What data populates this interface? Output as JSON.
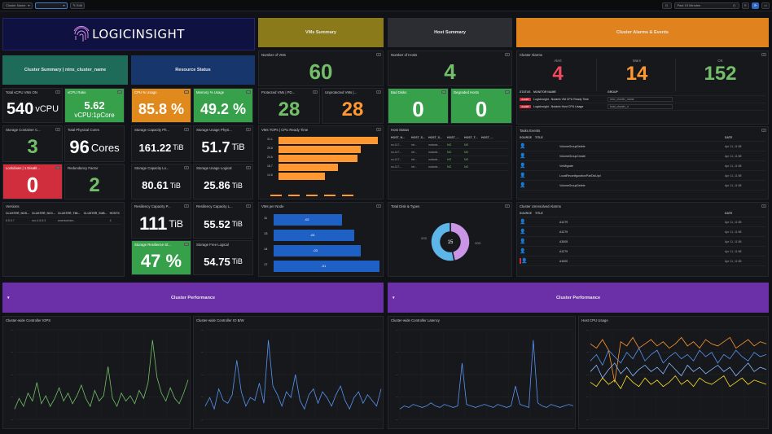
{
  "topbar": {
    "dropdown_a": "Cluster Name",
    "dropdown_c": "Edit",
    "time_range": "Past 15 Minutes"
  },
  "logo": {
    "text": "LOGICINSIGHT"
  },
  "sections": {
    "vms_summary": "VMs Summary",
    "host_summary": "Host Summary",
    "alarms_events": "Cluster Alarms & Events",
    "cluster_summary": "Cluster Summary | ntnx_cluster_name",
    "resource_status": "Resource Status",
    "perf_left": "Cluster Performance",
    "perf_right": "Cluster Performance"
  },
  "stats": {
    "total_vcpu": {
      "title": "Total vCPU VMs ON",
      "value": "540",
      "unit": "vCPU"
    },
    "vcpu_ratio": {
      "title": "vCPU Ratio",
      "value": "5.62",
      "sub": "vCPU:1pCore"
    },
    "cpu_usage": {
      "title": "CPU % Usage",
      "value": "85.8 %"
    },
    "memory_usage": {
      "title": "Memory % Usage",
      "value": "49.2 %"
    },
    "storage_container": {
      "title": "Storage Container C...",
      "value": "3"
    },
    "physical_cores": {
      "title": "Total Physical Cores",
      "value": "96",
      "unit": "Cores"
    },
    "storage_cap_ph": {
      "title": "Storage Capacity Ph...",
      "value": "161.22",
      "unit": "TiB"
    },
    "storage_usage_ph": {
      "title": "Storage Usage Physi...",
      "value": "51.7",
      "unit": "TiB"
    },
    "lockdown": {
      "title": "Lockdown | 1 Disabl...",
      "value": "0"
    },
    "redundancy": {
      "title": "Redundancy Factor",
      "value": "2"
    },
    "storage_cap_lo": {
      "title": "Storage Capacity Lo...",
      "value": "80.61",
      "unit": "TiB"
    },
    "storage_usage_lo": {
      "title": "Storage Usage Logical",
      "value": "25.86",
      "unit": "TiB"
    },
    "resiliency_cap_p": {
      "title": "Resiliency Capacity P...",
      "value": "111",
      "unit": "TiB"
    },
    "resiliency_cap_l": {
      "title": "Resiliency Capacity L...",
      "value": "55.52",
      "unit": "TiB"
    },
    "storage_resilience": {
      "title": "Storage Resilience St...",
      "value": "47 %"
    },
    "storage_free": {
      "title": "Storage Free Logical",
      "value": "54.75",
      "unit": "TiB"
    },
    "num_vms": {
      "title": "Number of VMs",
      "value": "60"
    },
    "protected_vms": {
      "title": "Protected VMs | PD...",
      "value": "28"
    },
    "unprotected_vms": {
      "title": "Unprotected VMs |...",
      "value": "28"
    },
    "num_hosts": {
      "title": "Number of Hosts",
      "value": "4"
    },
    "bad_disks": {
      "title": "Bad Disks",
      "value": "0"
    },
    "degraded_hosts": {
      "title": "Degraded Hosts",
      "value": "0"
    }
  },
  "versions": {
    "title": "Versions",
    "headers": [
      "CLUSTER_NOS...",
      "CLUSTER_NCC...",
      "CLUSTER_TIM...",
      "CLUSTER_SUB...",
      "HOSTS"
    ],
    "values": [
      "6.5.5.7",
      "ncc-4.6.6.3",
      "america/ram...",
      "",
      "4"
    ]
  },
  "vms_tops": {
    "title": "VMs TOPs | CPU Ready Time",
    "labels": [
      "31.1",
      "25.8",
      "24.6",
      "18.7",
      "14.6"
    ],
    "values": [
      31.1,
      25.8,
      24.6,
      18.7,
      14.6
    ]
  },
  "vms_per_node": {
    "title": "VMs per Node",
    "labels": [
      "11",
      "13",
      "14",
      "17"
    ],
    "ends": [
      "-02",
      "-04",
      "-03",
      "-01"
    ],
    "values": [
      11,
      13,
      14,
      17
    ]
  },
  "host_status": {
    "title": "Host Status",
    "headers": [
      "HOST_N...",
      "HOST_S...",
      "HOST_S...",
      "HOST_...",
      "HOST_T...",
      "HOST_..."
    ],
    "rows": [
      [
        "nx-117...",
        "ntr...",
        "nutanix...",
        "NO",
        "NO",
        ""
      ],
      [
        "nx-117...",
        "ntr...",
        "nutanix...",
        "NO",
        "NO",
        ""
      ],
      [
        "nx-117...",
        "ntr...",
        "nutanix...",
        "NO",
        "NO",
        ""
      ],
      [
        "nx-117...",
        "ntr...",
        "nutanix...",
        "NO",
        "NO",
        ""
      ]
    ]
  },
  "disk_types": {
    "title": "Total Disk & Types",
    "total": "15",
    "left_label": "SSD",
    "right_label": "HDD",
    "slices": [
      {
        "name": "SSD",
        "value": 7,
        "color": "#ca95e5"
      },
      {
        "name": "HDD",
        "value": 8,
        "color": "#5eb6e8"
      }
    ]
  },
  "alarms": {
    "title": "Cluster Alarms",
    "alert": {
      "label": "Alert",
      "value": "4"
    },
    "warn": {
      "label": "Warn",
      "value": "14"
    },
    "ok": {
      "label": "OK",
      "value": "152"
    },
    "headers": [
      "STATUS",
      "MONITOR NAME",
      "GROUP"
    ],
    "rows": [
      {
        "status": "ALERT",
        "monitor": "LogicInsight - Nutanix VM CPU Ready Time",
        "group": "ntnx_cluster_name"
      },
      {
        "status": "ALERT",
        "monitor": "LogicInsight - Nutanix Host CPU Usage",
        "group": "host_cluster_n"
      }
    ]
  },
  "task_events": {
    "title": "Tasks Events",
    "headers": [
      "SOURCE",
      "TITLE",
      "DATE"
    ],
    "rows": [
      {
        "title": "VolumeGroupDelete",
        "date": "Apr 11, 11:58"
      },
      {
        "title": "VolumeGroupCreate",
        "date": "Apr 11, 11:58"
      },
      {
        "title": "VmMigrate",
        "date": "Apr 11, 11:58"
      },
      {
        "title": "LocalReconfigurationPairDisUpd",
        "date": "Apr 11, 11:58"
      },
      {
        "title": "VolumeGroupDelete",
        "date": "Apr 11, 11:58"
      }
    ]
  },
  "unresolved": {
    "title": "Cluster Unresolved Alarms",
    "headers": [
      "SOURCE",
      "TITLE",
      "DATE"
    ],
    "rows": [
      {
        "title": "A1279",
        "date": "Apr 11, 11:58"
      },
      {
        "title": "A1279",
        "date": "Apr 11, 11:58"
      },
      {
        "title": "A3005",
        "date": "Apr 11, 11:58"
      },
      {
        "title": "A1279",
        "date": "Apr 11, 11:58"
      },
      {
        "title": "A1000",
        "date": "Apr 11, 11:58"
      }
    ]
  },
  "charts": {
    "iops": {
      "title": "Cluster-wide Controller IOPS"
    },
    "bw": {
      "title": "Cluster-wide Controller IO B/W"
    },
    "latency": {
      "title": "Cluster-wide Controller Latency"
    },
    "cpu": {
      "title": "Host CPU Usage"
    }
  },
  "chart_data": [
    {
      "type": "line",
      "title": "Cluster-wide Controller IOPS",
      "values": [
        8,
        12,
        9,
        14,
        11,
        18,
        10,
        13,
        9,
        12,
        16,
        11,
        14,
        10,
        13,
        17,
        12,
        9,
        15,
        11,
        13,
        24,
        12,
        9,
        14,
        11,
        13,
        10,
        15,
        12,
        18,
        34,
        20,
        14,
        11,
        16,
        12,
        10,
        14,
        19
      ]
    },
    {
      "type": "line",
      "title": "Cluster-wide Controller IO B/W",
      "values": [
        22,
        25,
        21,
        28,
        24,
        23,
        26,
        38,
        27,
        22,
        25,
        24,
        30,
        23,
        45,
        29,
        26,
        22,
        27,
        25,
        33,
        24,
        21,
        26,
        28,
        23,
        27,
        25,
        22,
        26,
        29,
        24,
        21,
        25,
        27,
        23,
        26,
        24,
        22,
        28
      ]
    },
    {
      "type": "line",
      "title": "Cluster-wide Controller Latency",
      "values": [
        10,
        12,
        11,
        13,
        12,
        11,
        12,
        14,
        12,
        11,
        13,
        12,
        11,
        12,
        40,
        13,
        12,
        11,
        12,
        13,
        12,
        11,
        13,
        12,
        11,
        12,
        25,
        13,
        12,
        11,
        55,
        14,
        12,
        11,
        13,
        12,
        11,
        12,
        13,
        12
      ]
    },
    {
      "type": "line",
      "title": "Host CPU Usage",
      "series": [
        {
          "values": [
            88,
            86,
            90,
            85,
            70,
            89,
            87,
            91,
            86,
            88,
            90,
            87,
            89,
            86,
            88,
            91,
            87,
            89,
            86,
            90,
            88,
            87,
            89,
            91,
            86,
            88,
            90,
            87,
            89,
            88
          ]
        },
        {
          "values": [
            80,
            83,
            78,
            85,
            82,
            79,
            84,
            81,
            86,
            80,
            83,
            85,
            79,
            82,
            84,
            81,
            83,
            80,
            85,
            82,
            84,
            79,
            83,
            81,
            85,
            82,
            80,
            84,
            82,
            83
          ]
        },
        {
          "values": [
            75,
            78,
            72,
            76,
            79,
            74,
            77,
            73,
            76,
            78,
            75,
            77,
            74,
            79,
            76,
            73,
            78,
            75,
            77,
            74,
            76,
            78,
            75,
            77,
            73,
            76,
            79,
            75,
            77,
            76
          ]
        },
        {
          "values": [
            70,
            68,
            72,
            69,
            71,
            67,
            73,
            70,
            68,
            72,
            69,
            71,
            68,
            70,
            73,
            69,
            71,
            68,
            72,
            70,
            69,
            71,
            73,
            68,
            70,
            72,
            69,
            71,
            70,
            69
          ]
        }
      ]
    }
  ],
  "colors": {
    "orange": "#ff9830",
    "green": "#37a04a",
    "red": "#d02e3c",
    "blue": "#1f60c4",
    "purple": "#6b2fa8",
    "olive": "#8a7a1a"
  }
}
